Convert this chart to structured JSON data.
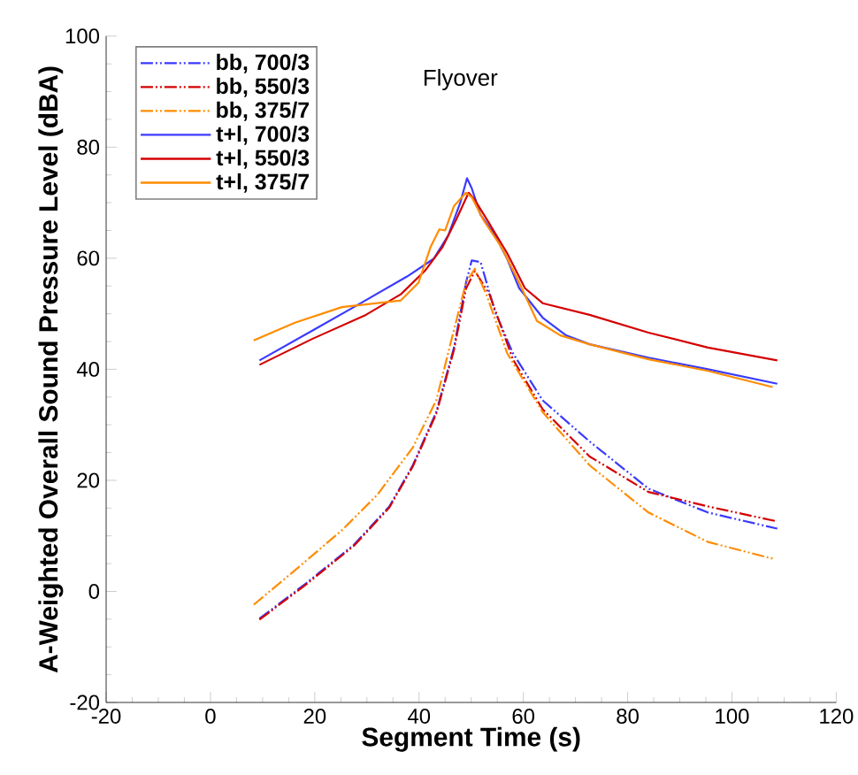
{
  "chart_data": {
    "type": "line",
    "xlabel": "Segment Time (s)",
    "ylabel": "A-Weighted Overall Sound Pressure Level (dBA)",
    "annotations": [
      "Flyover"
    ],
    "xlim": [
      -20,
      120
    ],
    "xticks": [
      -20,
      0,
      20,
      40,
      60,
      80,
      100,
      120
    ],
    "ylim": [
      -20,
      100
    ],
    "yticks": [
      -20,
      0,
      20,
      40,
      60,
      80,
      100
    ],
    "grid": false,
    "legend": "top left",
    "marker": "none",
    "series": [
      {
        "name": "bb, 700/3",
        "color": "#3a3aff",
        "line_style": "dashed",
        "x": [
          9.4,
          18.4,
          27.5,
          34.3,
          38.8,
          43.3,
          46.7,
          49,
          50.1,
          51.8,
          54.6,
          58,
          63.7,
          72.7,
          84,
          95.4,
          108.7
        ],
        "values": [
          -4.9,
          1.5,
          8.4,
          15.3,
          22.7,
          32.3,
          43.9,
          55.6,
          59.6,
          59.3,
          50.3,
          42.9,
          34.4,
          27,
          18.5,
          14.2,
          11.3
        ]
      },
      {
        "name": "bb, 550/3",
        "color": "#d40000",
        "line_style": "dashed",
        "x": [
          9.4,
          18.4,
          27.5,
          34.3,
          38.8,
          43.3,
          46.7,
          49,
          50.7,
          53.5,
          58,
          63.7,
          72.7,
          84,
          95.4,
          108.7
        ],
        "values": [
          -5.1,
          1.3,
          8.2,
          15.1,
          22.5,
          32,
          43.5,
          54.5,
          57.7,
          53.5,
          41.8,
          32.8,
          24.3,
          17.9,
          15.3,
          12.6
        ]
      },
      {
        "name": "bb, 375/7",
        "color": "#ff8c00",
        "line_style": "dashed",
        "x": [
          8.3,
          16.2,
          25.2,
          32,
          38.8,
          43.3,
          46.7,
          49,
          50.7,
          52.9,
          56.9,
          63.7,
          72.7,
          84,
          95.4,
          107.8
        ],
        "values": [
          -2.4,
          3.8,
          11,
          17.4,
          25.9,
          34.4,
          47.1,
          55.6,
          58.1,
          53.5,
          42.9,
          32.3,
          22.7,
          14.2,
          8.9,
          5.9
        ]
      },
      {
        "name": "t+l, 700/3",
        "color": "#3a3aff",
        "line_style": "solid",
        "x": [
          9.4,
          19.6,
          27.5,
          37.7,
          42.8,
          45.6,
          47.9,
          49.2,
          50.1,
          51.8,
          54.6,
          56.9,
          59.2,
          63.7,
          68.2,
          72.7,
          84,
          95.4,
          108.7
        ],
        "values": [
          41.6,
          47,
          51.2,
          56.7,
          59.9,
          64.1,
          70,
          74.4,
          72.6,
          67.8,
          64.1,
          59.9,
          54.6,
          49.3,
          46.1,
          44.5,
          42.1,
          40,
          37.4
        ]
      },
      {
        "name": "t+l, 550/3",
        "color": "#d40000",
        "line_style": "solid",
        "x": [
          9.4,
          19.6,
          29.8,
          36.5,
          41.1,
          44.5,
          47.3,
          49.5,
          50.7,
          53.5,
          56.9,
          60.3,
          63.7,
          72.7,
          84,
          95.4,
          108.7
        ],
        "values": [
          40.8,
          45.5,
          49.8,
          53.5,
          57.7,
          62,
          67.3,
          71.8,
          70.5,
          66.2,
          60.9,
          54.6,
          51.9,
          49.8,
          46.6,
          43.9,
          41.6
        ]
      },
      {
        "name": "t+l, 375/7",
        "color": "#ff8c00",
        "line_style": "solid",
        "x": [
          8.3,
          16.2,
          25.2,
          32,
          36.5,
          39.9,
          42.2,
          43.9,
          45,
          46.7,
          49,
          50.1,
          52.4,
          55.8,
          59.2,
          62.6,
          67.1,
          72.7,
          84,
          95.4,
          107.8
        ],
        "values": [
          45.2,
          48.4,
          51.2,
          51.9,
          52.4,
          55.6,
          62,
          65.2,
          65,
          69.4,
          71.8,
          71,
          66.8,
          62,
          55.6,
          48.7,
          46.1,
          44.5,
          41.8,
          39.7,
          36.8
        ]
      }
    ]
  }
}
